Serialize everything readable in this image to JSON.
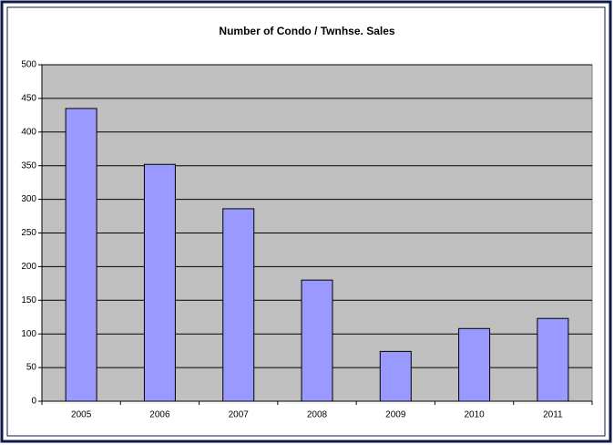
{
  "chart_data": {
    "type": "bar",
    "title": "Number of Condo / Twnhse. Sales",
    "categories": [
      "2005",
      "2006",
      "2007",
      "2008",
      "2009",
      "2010",
      "2011"
    ],
    "values": [
      435,
      352,
      286,
      180,
      74,
      108,
      123
    ],
    "color": "#9999ff",
    "ylim": [
      0,
      500
    ],
    "yticks": [
      0,
      50,
      100,
      150,
      200,
      250,
      300,
      350,
      400,
      450,
      500
    ],
    "grid": true
  }
}
